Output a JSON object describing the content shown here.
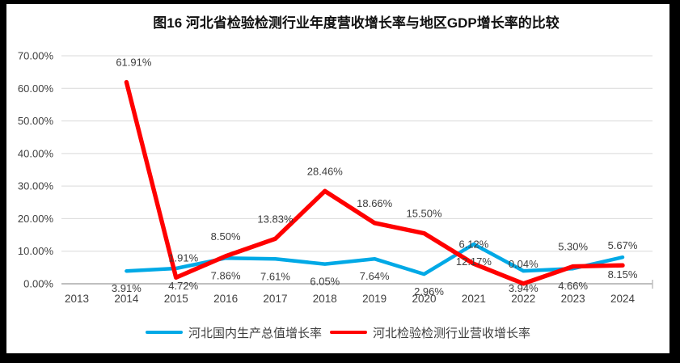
{
  "page": {
    "frame_color": "#000000",
    "paper_color": "#ffffff"
  },
  "chart_data": {
    "type": "line",
    "title": "图16 河北省检验检测行业年度营收增长率与地区GDP增长率的比较",
    "categories": [
      "2013",
      "2014",
      "2015",
      "2016",
      "2017",
      "2018",
      "2019",
      "2020",
      "2021",
      "2022",
      "2023",
      "2024"
    ],
    "series": [
      {
        "name": "河北国内生产总值增长率",
        "color": "#00A9E6",
        "label_position": "below",
        "values": [
          null,
          3.91,
          4.72,
          7.86,
          7.61,
          6.05,
          7.64,
          2.96,
          12.17,
          3.94,
          4.66,
          8.15
        ],
        "labels": [
          null,
          "3.91%",
          "4.72%",
          "7.86%",
          "7.61%",
          "6.05%",
          "7.64%",
          "2.96%",
          "12.17%",
          "3.94%",
          "4.66%",
          "8.15%"
        ],
        "label_dx": [
          0,
          0,
          9,
          0,
          0,
          0,
          0,
          6,
          0,
          0,
          0,
          0
        ]
      },
      {
        "name": "河北检验检测行业营收增长率",
        "color": "#FF0000",
        "label_position": "above",
        "values": [
          null,
          61.91,
          1.91,
          8.5,
          13.83,
          28.46,
          18.66,
          15.5,
          6.12,
          0.04,
          5.3,
          5.67
        ],
        "labels": [
          null,
          "61.91%",
          "1.91%",
          "8.50%",
          "13.83%",
          "28.46%",
          "18.66%",
          "15.50%",
          "6.12%",
          "0.04%",
          "5.30%",
          "5.67%"
        ],
        "label_dx": [
          0,
          9,
          9,
          0,
          0,
          0,
          0,
          0,
          0,
          0,
          0,
          0
        ]
      }
    ],
    "y_axis": {
      "min": 0,
      "max": 70,
      "step": 10,
      "tick_labels": [
        "0.00%",
        "10.00%",
        "20.00%",
        "30.00%",
        "40.00%",
        "50.00%",
        "60.00%",
        "70.00%"
      ]
    },
    "x_axis": {
      "tick_labels": [
        "2013",
        "2014",
        "2015",
        "2016",
        "2017",
        "2018",
        "2019",
        "2020",
        "2021",
        "2022",
        "2023",
        "2024"
      ]
    },
    "grid": true,
    "legend_position": "bottom",
    "colors": {
      "gridline": "#D9D9D9",
      "axis_line": "#BFBFBF",
      "tick_text": "#404040",
      "data_label_text": "#3D3D3D"
    }
  }
}
